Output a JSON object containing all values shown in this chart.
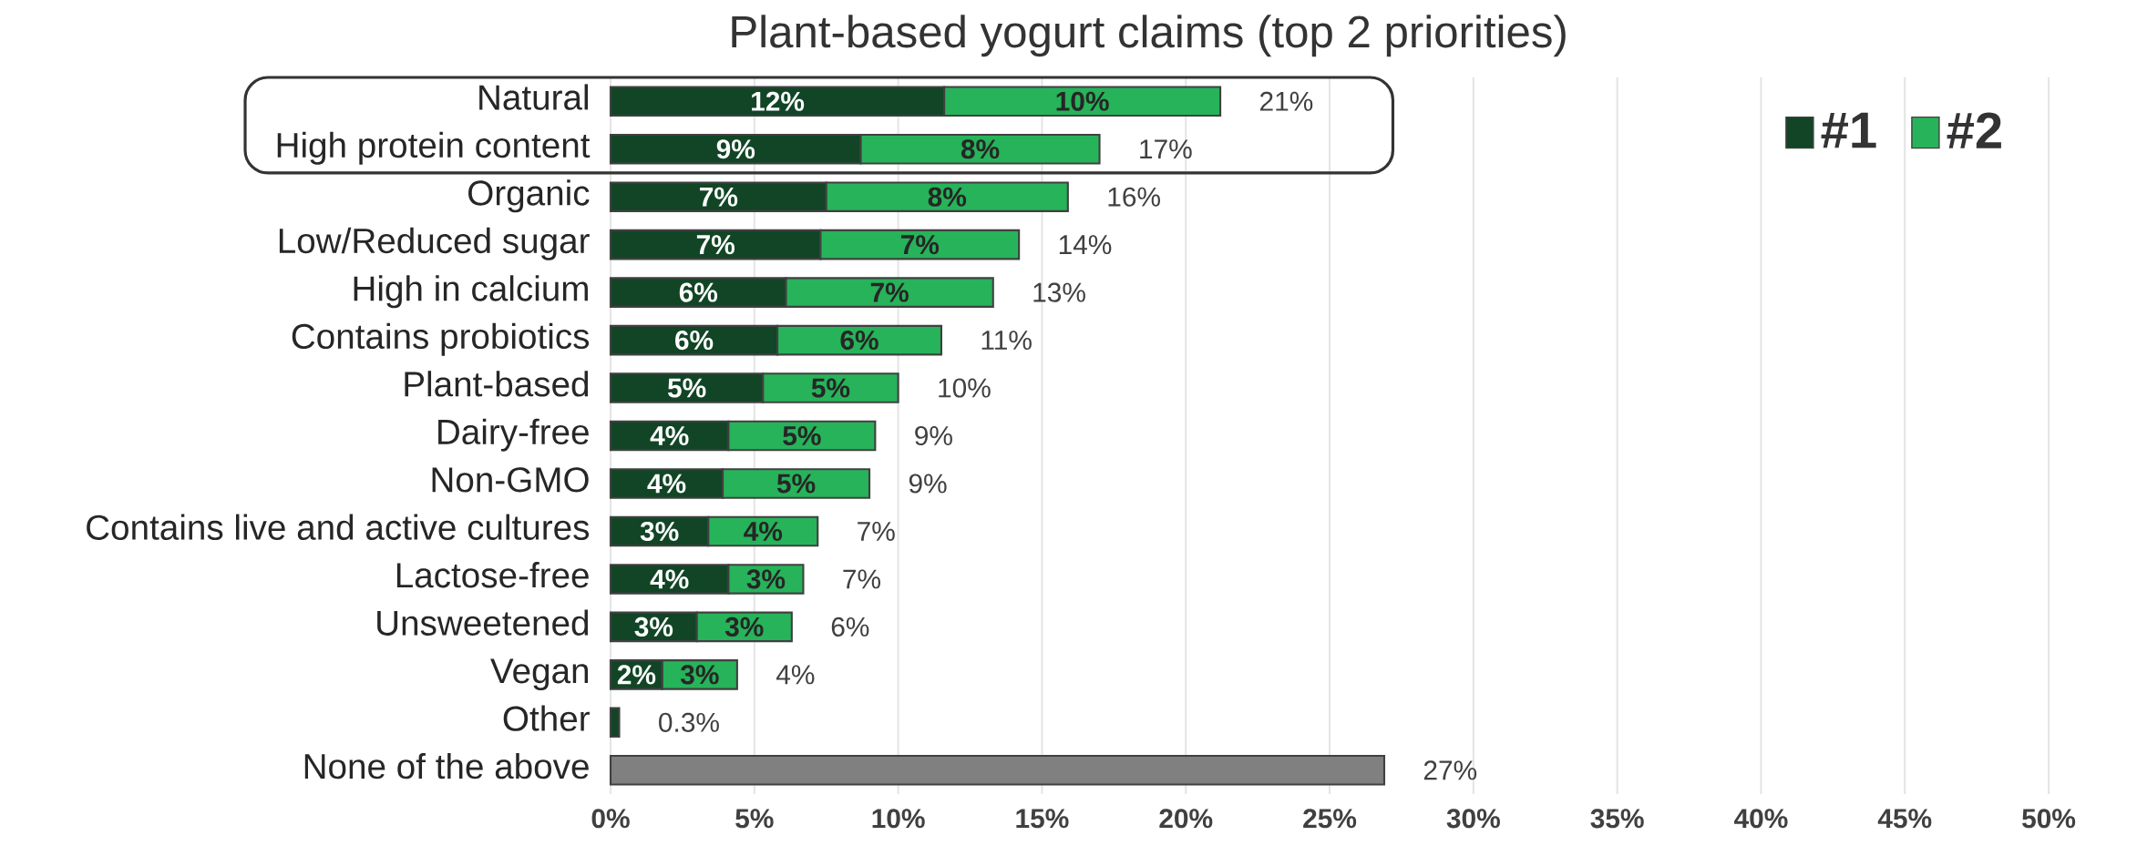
{
  "chart_data": {
    "type": "bar",
    "orientation": "horizontal",
    "stacked": true,
    "title": "Plant-based yogurt claims (top 2 priorities)",
    "categories": [
      "Natural",
      "High protein content",
      "Organic",
      "Low/Reduced sugar",
      "High in calcium",
      "Contains probiotics",
      "Plant-based",
      "Dairy-free",
      "Non-GMO",
      "Contains live and active cultures",
      "Lactose-free",
      "Unsweetened",
      "Vegan",
      "Other",
      "None of the above"
    ],
    "series": [
      {
        "name": "#1",
        "color": "#114526",
        "colors": [
          "#114526",
          "#114526",
          "#114526",
          "#114526",
          "#114526",
          "#114526",
          "#114526",
          "#114526",
          "#114526",
          "#114526",
          "#114526",
          "#114526",
          "#114526",
          "#114526",
          "#808080"
        ],
        "values": [
          11.6,
          8.7,
          7.5,
          7.3,
          6.1,
          5.8,
          5.3,
          4.1,
          3.9,
          3.4,
          4.1,
          3.0,
          1.8,
          0.3,
          26.9
        ],
        "value_labels": [
          "12%",
          "9%",
          "7%",
          "7%",
          "6%",
          "6%",
          "5%",
          "4%",
          "4%",
          "3%",
          "4%",
          "3%",
          "2%",
          null,
          null
        ]
      },
      {
        "name": "#2",
        "color": "#27b35a",
        "values": [
          9.6,
          8.3,
          8.4,
          6.9,
          7.2,
          5.7,
          4.7,
          5.1,
          5.1,
          3.8,
          2.6,
          3.3,
          2.6,
          null,
          null
        ],
        "value_labels": [
          "10%",
          "8%",
          "8%",
          "7%",
          "7%",
          "6%",
          "5%",
          "5%",
          "5%",
          "4%",
          "3%",
          "3%",
          "3%",
          null,
          null
        ]
      }
    ],
    "totals": [
      "21%",
      "17%",
      "16%",
      "14%",
      "13%",
      "11%",
      "10%",
      "9%",
      "9%",
      "7%",
      "7%",
      "6%",
      "4%",
      "0.3%",
      "27%"
    ],
    "xlim": [
      0,
      50
    ],
    "xticks": [
      {
        "value": 0,
        "label": "0%"
      },
      {
        "value": 5,
        "label": "5%"
      },
      {
        "value": 10,
        "label": "10%"
      },
      {
        "value": 15,
        "label": "15%"
      },
      {
        "value": 20,
        "label": "20%"
      },
      {
        "value": 25,
        "label": "25%"
      },
      {
        "value": 30,
        "label": "30%"
      },
      {
        "value": 35,
        "label": "35%"
      },
      {
        "value": 40,
        "label": "40%"
      },
      {
        "value": 45,
        "label": "45%"
      },
      {
        "value": 50,
        "label": "50%"
      }
    ],
    "grid": "x",
    "legend": "top right"
  }
}
